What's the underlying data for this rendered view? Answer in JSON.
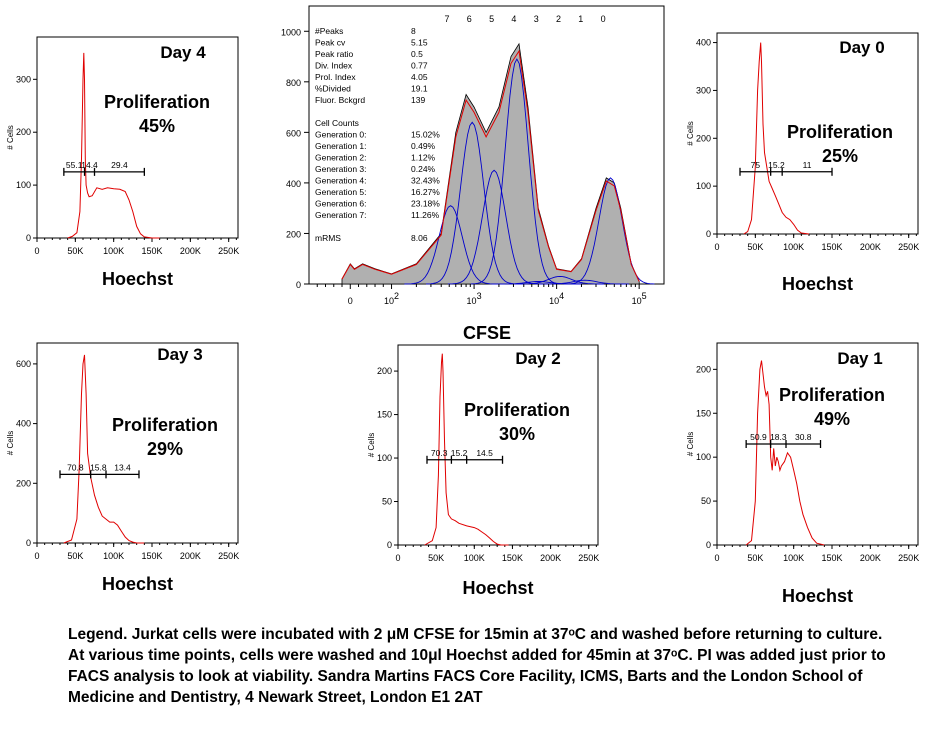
{
  "chart_data": [
    {
      "type": "line",
      "panel": "day4",
      "title": "Day 4",
      "xlabel": "Hoechst",
      "ylabel": "# Cells",
      "xlim": [
        0,
        262144
      ],
      "ylim": [
        0,
        380
      ],
      "xticks": [
        0,
        50000,
        100000,
        150000,
        200000,
        250000
      ],
      "xtick_labels": [
        "0",
        "50K",
        "100K",
        "150K",
        "200K",
        "250K"
      ],
      "yticks": [
        0,
        100,
        200,
        300
      ],
      "ytick_labels": [
        "0",
        "100",
        "200",
        "300"
      ],
      "series": [
        {
          "x": [
            40000,
            46000,
            52000,
            56000,
            58000,
            60000,
            61000,
            62000,
            63000,
            64000,
            66000,
            68000,
            72000,
            78000,
            85000,
            92000,
            100000,
            108000,
            115000,
            120000,
            125000,
            130000,
            135000,
            140000,
            150000,
            160000
          ],
          "values": [
            0,
            3,
            10,
            50,
            150,
            300,
            350,
            300,
            150,
            100,
            85,
            78,
            80,
            95,
            92,
            95,
            93,
            92,
            88,
            72,
            50,
            22,
            8,
            2,
            0,
            0
          ]
        }
      ],
      "gate_labels": [
        "55.1",
        "14.4",
        "29.4"
      ],
      "gate_x": [
        35000,
        62000,
        75000,
        140000
      ],
      "gate_y": 125,
      "annotation_lines": [
        "Proliferation",
        "45%"
      ]
    },
    {
      "type": "line",
      "panel": "day0",
      "title": "Day 0",
      "xlabel": "Hoechst",
      "ylabel": "# Cells",
      "xlim": [
        0,
        262144
      ],
      "ylim": [
        0,
        420
      ],
      "xticks": [
        0,
        50000,
        100000,
        150000,
        200000,
        250000
      ],
      "xtick_labels": [
        "0",
        "50K",
        "100K",
        "150K",
        "200K",
        "250K"
      ],
      "yticks": [
        0,
        100,
        200,
        300,
        400
      ],
      "ytick_labels": [
        "0",
        "100",
        "200",
        "300",
        "400"
      ],
      "series": [
        {
          "x": [
            35000,
            40000,
            45000,
            50000,
            53000,
            55000,
            57000,
            58000,
            60000,
            62000,
            65000,
            68000,
            72000,
            76000,
            80000,
            85000,
            90000,
            95000,
            100000,
            105000,
            110000,
            120000
          ],
          "values": [
            0,
            5,
            30,
            140,
            300,
            360,
            400,
            360,
            230,
            170,
            140,
            110,
            95,
            80,
            65,
            45,
            35,
            30,
            20,
            8,
            2,
            0
          ]
        }
      ],
      "gate_labels": [
        "75",
        "15.2",
        "11"
      ],
      "gate_x": [
        30000,
        70000,
        85000,
        150000
      ],
      "gate_y": 130,
      "annotation_lines": [
        "Proliferation",
        "25%"
      ]
    },
    {
      "type": "line",
      "panel": "cfse",
      "xlabel": "CFSE",
      "ylabel": "",
      "x_scale": "biexponential",
      "xlim": [
        -100,
        200000
      ],
      "ylim": [
        0,
        1100
      ],
      "xticks": [
        0,
        100,
        1000,
        10000,
        100000
      ],
      "xtick_labels": [
        "0",
        "10^2",
        "10^3",
        "10^4",
        "10^5"
      ],
      "yticks": [
        0,
        200,
        400,
        600,
        800,
        1000
      ],
      "ytick_labels": [
        "0",
        "200",
        "400",
        "600",
        "800",
        "1000"
      ],
      "generation_labels": [
        "7",
        "6",
        "5",
        "4",
        "3",
        "2",
        "1",
        "0"
      ],
      "total_fit": {
        "x": [
          -20,
          0,
          10,
          30,
          60,
          100,
          200,
          400,
          600,
          800,
          1000,
          1400,
          2000,
          2800,
          3500,
          4500,
          6000,
          8000,
          10000,
          15000,
          20000,
          30000,
          40000,
          50000,
          60000,
          80000,
          100000
        ],
        "values": [
          20,
          80,
          60,
          80,
          60,
          40,
          80,
          200,
          600,
          750,
          700,
          600,
          700,
          900,
          950,
          700,
          300,
          150,
          60,
          50,
          100,
          300,
          420,
          400,
          300,
          80,
          10
        ]
      },
      "generations": [
        {
          "name": "Generation 0:",
          "percent": "15.02%",
          "center": 45000,
          "height": 420
        },
        {
          "name": "Generation 1:",
          "percent": "0.49%",
          "center": 22000,
          "height": 15
        },
        {
          "name": "Generation 2:",
          "percent": "1.12%",
          "center": 11000,
          "height": 30
        },
        {
          "name": "Generation 3:",
          "percent": "0.24%",
          "center": 6000,
          "height": 10
        },
        {
          "name": "Generation 4:",
          "percent": "32.43%",
          "center": 3300,
          "height": 890
        },
        {
          "name": "Generation 5:",
          "percent": "16.27%",
          "center": 1750,
          "height": 450
        },
        {
          "name": "Generation 6:",
          "percent": "23.18%",
          "center": 950,
          "height": 640
        },
        {
          "name": "Generation 7:",
          "percent": "11.26%",
          "center": 520,
          "height": 310
        }
      ],
      "stats": [
        {
          "label": "#Peaks",
          "value": "8"
        },
        {
          "label": "Peak cv",
          "value": "5.15"
        },
        {
          "label": "Peak ratio",
          "value": "0.5"
        },
        {
          "label": "Div. Index",
          "value": "0.77"
        },
        {
          "label": "Prol. Index",
          "value": "4.05"
        },
        {
          "label": "%Divided",
          "value": "19.1"
        },
        {
          "label": "Fluor. Bckgrd",
          "value": "139"
        }
      ],
      "cell_counts_heading": "Cell Counts",
      "mrms": {
        "label": "mRMS",
        "value": "8.06"
      }
    },
    {
      "type": "line",
      "panel": "day3",
      "title": "Day 3",
      "xlabel": "Hoechst",
      "ylabel": "# Cells",
      "xlim": [
        0,
        262144
      ],
      "ylim": [
        0,
        670
      ],
      "xticks": [
        0,
        50000,
        100000,
        150000,
        200000,
        250000
      ],
      "xtick_labels": [
        "0",
        "50K",
        "100K",
        "150K",
        "200K",
        "250K"
      ],
      "yticks": [
        0,
        200,
        400,
        600
      ],
      "ytick_labels": [
        "0",
        "200",
        "400",
        "600"
      ],
      "series": [
        {
          "x": [
            35000,
            45000,
            52000,
            55000,
            58000,
            60000,
            62000,
            64000,
            66000,
            70000,
            75000,
            80000,
            85000,
            90000,
            95000,
            100000,
            105000,
            110000,
            115000,
            120000,
            125000,
            130000,
            140000
          ],
          "values": [
            0,
            10,
            80,
            250,
            500,
            600,
            630,
            500,
            300,
            220,
            160,
            120,
            90,
            80,
            70,
            70,
            60,
            40,
            20,
            8,
            3,
            0,
            0
          ]
        }
      ],
      "gate_labels": [
        "70.8",
        "15.8",
        "13.4"
      ],
      "gate_x": [
        30000,
        70000,
        90000,
        133000
      ],
      "gate_y": 230,
      "annotation_lines": [
        "Proliferation",
        "29%"
      ]
    },
    {
      "type": "line",
      "panel": "day2",
      "title": "Day 2",
      "xlabel": "Hoechst",
      "ylabel": "# Cells",
      "xlim": [
        0,
        262144
      ],
      "ylim": [
        0,
        230
      ],
      "xticks": [
        0,
        50000,
        100000,
        150000,
        200000,
        250000
      ],
      "xtick_labels": [
        "0",
        "50K",
        "100K",
        "150K",
        "200K",
        "250K"
      ],
      "yticks": [
        0,
        50,
        100,
        150,
        200
      ],
      "ytick_labels": [
        "0",
        "50",
        "100",
        "150",
        "200"
      ],
      "series": [
        {
          "x": [
            35000,
            45000,
            50000,
            53000,
            55000,
            57000,
            58000,
            59000,
            61000,
            63000,
            66000,
            70000,
            75000,
            80000,
            90000,
            100000,
            105000,
            110000,
            115000,
            120000,
            125000,
            130000,
            135000,
            145000
          ],
          "values": [
            0,
            5,
            20,
            80,
            170,
            210,
            220,
            200,
            120,
            60,
            35,
            30,
            28,
            25,
            22,
            20,
            18,
            15,
            12,
            8,
            4,
            1,
            0,
            0
          ]
        }
      ],
      "gate_labels": [
        "70.3",
        "15.2",
        "14.5"
      ],
      "gate_x": [
        38000,
        70000,
        90000,
        137000
      ],
      "gate_y": 98,
      "annotation_lines": [
        "Proliferation",
        "30%"
      ]
    },
    {
      "type": "line",
      "panel": "day1",
      "title": "Day 1",
      "xlabel": "Hoechst",
      "ylabel": "# Cells",
      "xlim": [
        0,
        262144
      ],
      "ylim": [
        0,
        230
      ],
      "xticks": [
        0,
        50000,
        100000,
        150000,
        200000,
        250000
      ],
      "xtick_labels": [
        "0",
        "50K",
        "100K",
        "150K",
        "200K",
        "250K"
      ],
      "yticks": [
        0,
        50,
        100,
        150,
        200
      ],
      "ytick_labels": [
        "0",
        "50",
        "100",
        "150",
        "200"
      ],
      "series": [
        {
          "x": [
            38000,
            45000,
            50000,
            53000,
            56000,
            58000,
            60000,
            62000,
            64000,
            66000,
            68000,
            70000,
            72000,
            74000,
            76000,
            78000,
            80000,
            82000,
            84000,
            88000,
            92000,
            96000,
            100000,
            104000,
            108000,
            112000,
            118000,
            124000,
            130000,
            140000
          ],
          "values": [
            0,
            5,
            50,
            150,
            200,
            210,
            195,
            180,
            170,
            175,
            160,
            100,
            85,
            110,
            90,
            100,
            95,
            85,
            90,
            95,
            105,
            100,
            85,
            70,
            50,
            35,
            20,
            8,
            2,
            0
          ]
        }
      ],
      "gate_labels": [
        "50.9",
        "18.3",
        "30.8"
      ],
      "gate_x": [
        38000,
        70000,
        90000,
        135000
      ],
      "gate_y": 115,
      "annotation_lines": [
        "Proliferation",
        "49%"
      ]
    }
  ],
  "legend_text": "Legend. Jurkat cells were incubated with 2 μM CFSE for 15min at 37ᵒC and washed before returning to culture. At various time points, cells were washed and 10μl Hoechst added for 45min at 37ᵒC. PI was added just prior to FACS analysis to look at viability.  Sandra Martins FACS Core Facility, ICMS, Barts and the London School of Medicine and Dentistry, 4 Newark Street, London E1 2AT"
}
